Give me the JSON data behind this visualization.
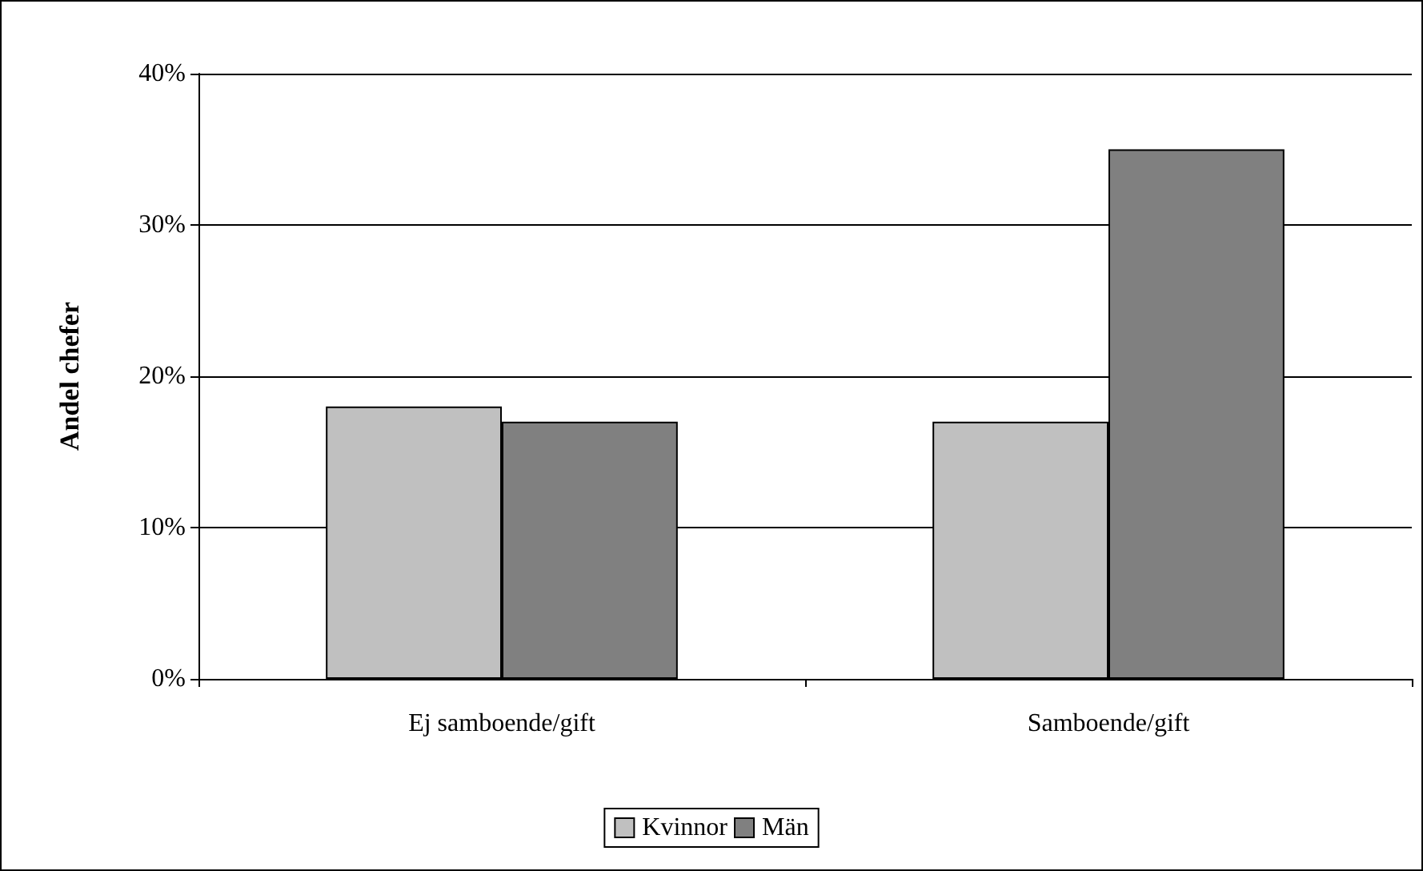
{
  "chart_data": {
    "type": "bar",
    "ylabel": "Andel chefer",
    "categories": [
      "Ej samboende/gift",
      "Samboende/gift"
    ],
    "series": [
      {
        "name": "Kvinnor",
        "color": "#c0c0c0",
        "values": [
          18,
          17
        ]
      },
      {
        "name": "Män",
        "color": "#808080",
        "values": [
          17,
          35
        ]
      }
    ],
    "ylim": [
      0,
      40
    ],
    "yticks": [
      {
        "value": 0,
        "label": "0%"
      },
      {
        "value": 10,
        "label": "10%"
      },
      {
        "value": 20,
        "label": "20%"
      },
      {
        "value": 30,
        "label": "30%"
      },
      {
        "value": 40,
        "label": "40%"
      }
    ],
    "grid": "y",
    "legend": "bottom"
  }
}
